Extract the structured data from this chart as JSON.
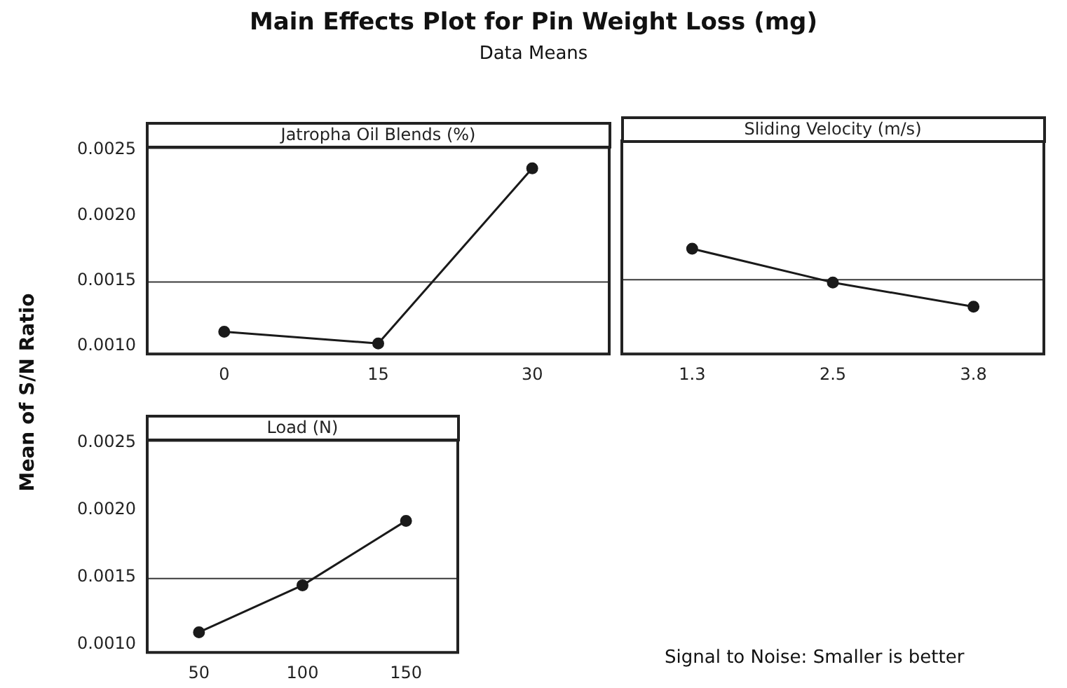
{
  "chart_data": [
    {
      "type": "line",
      "title": "Main Effects Plot for Pin Weight Loss (mg)",
      "subtitle": "Data Means",
      "ylabel": "Mean of S/N Ratio",
      "xlabel": "Jatropha Oil Blends (%)",
      "categories": [
        "0",
        "15",
        "30"
      ],
      "values": [
        0.00111,
        0.00102,
        0.00236
      ],
      "color": "#1a1a1a",
      "marker": "circle",
      "ylim": [
        0.00094,
        0.00252
      ],
      "yticks": [
        {
          "value": 0.001,
          "label": "0.0010"
        },
        {
          "value": 0.0015,
          "label": "0.0015"
        },
        {
          "value": 0.002,
          "label": "0.0020"
        },
        {
          "value": 0.0025,
          "label": "0.0025"
        }
      ],
      "ref_lines": [
        {
          "axis": "y",
          "value": 0.00149,
          "color": "#3a3a3a"
        }
      ],
      "grid": false,
      "legend": false
    },
    {
      "type": "line",
      "xlabel": "Sliding Velocity (m/s)",
      "categories": [
        "1.3",
        "2.5",
        "3.8"
      ],
      "values": [
        0.00172,
        0.00147,
        0.00129
      ],
      "color": "#1a1a1a",
      "marker": "circle",
      "ylim": [
        0.00094,
        0.00252
      ],
      "ref_lines": [
        {
          "axis": "y",
          "value": 0.00149,
          "color": "#3a3a3a"
        }
      ],
      "grid": false,
      "legend": false,
      "tick_labels": "x"
    },
    {
      "type": "line",
      "xlabel": "Load (N)",
      "categories": [
        "50",
        "100",
        "150"
      ],
      "values": [
        0.00109,
        0.00144,
        0.00192
      ],
      "color": "#1a1a1a",
      "marker": "circle",
      "ylim": [
        0.00094,
        0.00252
      ],
      "yticks": [
        {
          "value": 0.001,
          "label": "0.0010"
        },
        {
          "value": 0.0015,
          "label": "0.0015"
        },
        {
          "value": 0.002,
          "label": "0.0020"
        },
        {
          "value": 0.0025,
          "label": "0.0025"
        }
      ],
      "ref_lines": [
        {
          "axis": "y",
          "value": 0.00149,
          "color": "#3a3a3a"
        }
      ],
      "grid": false,
      "legend": false,
      "annotations": [
        "Signal to Noise: Smaller is better"
      ]
    }
  ]
}
